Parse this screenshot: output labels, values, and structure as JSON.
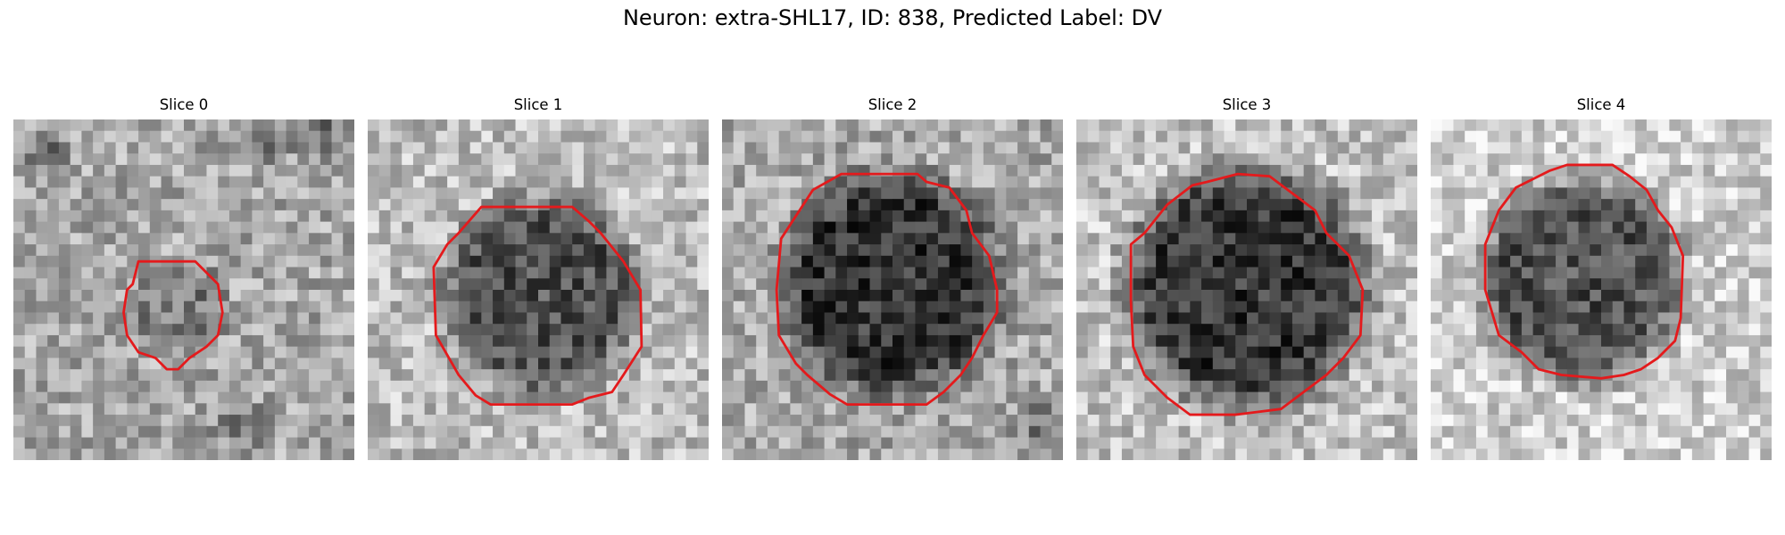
{
  "figure": {
    "title": "Neuron: extra-SHL17, ID: 838, Predicted Label: DV"
  },
  "panels": [
    {
      "label": "Slice 0"
    },
    {
      "label": "Slice 1"
    },
    {
      "label": "Slice 2"
    },
    {
      "label": "Slice 3"
    },
    {
      "label": "Slice 4"
    }
  ],
  "colors": {
    "contour": "#e41a1c",
    "background": "#ffffff"
  }
}
